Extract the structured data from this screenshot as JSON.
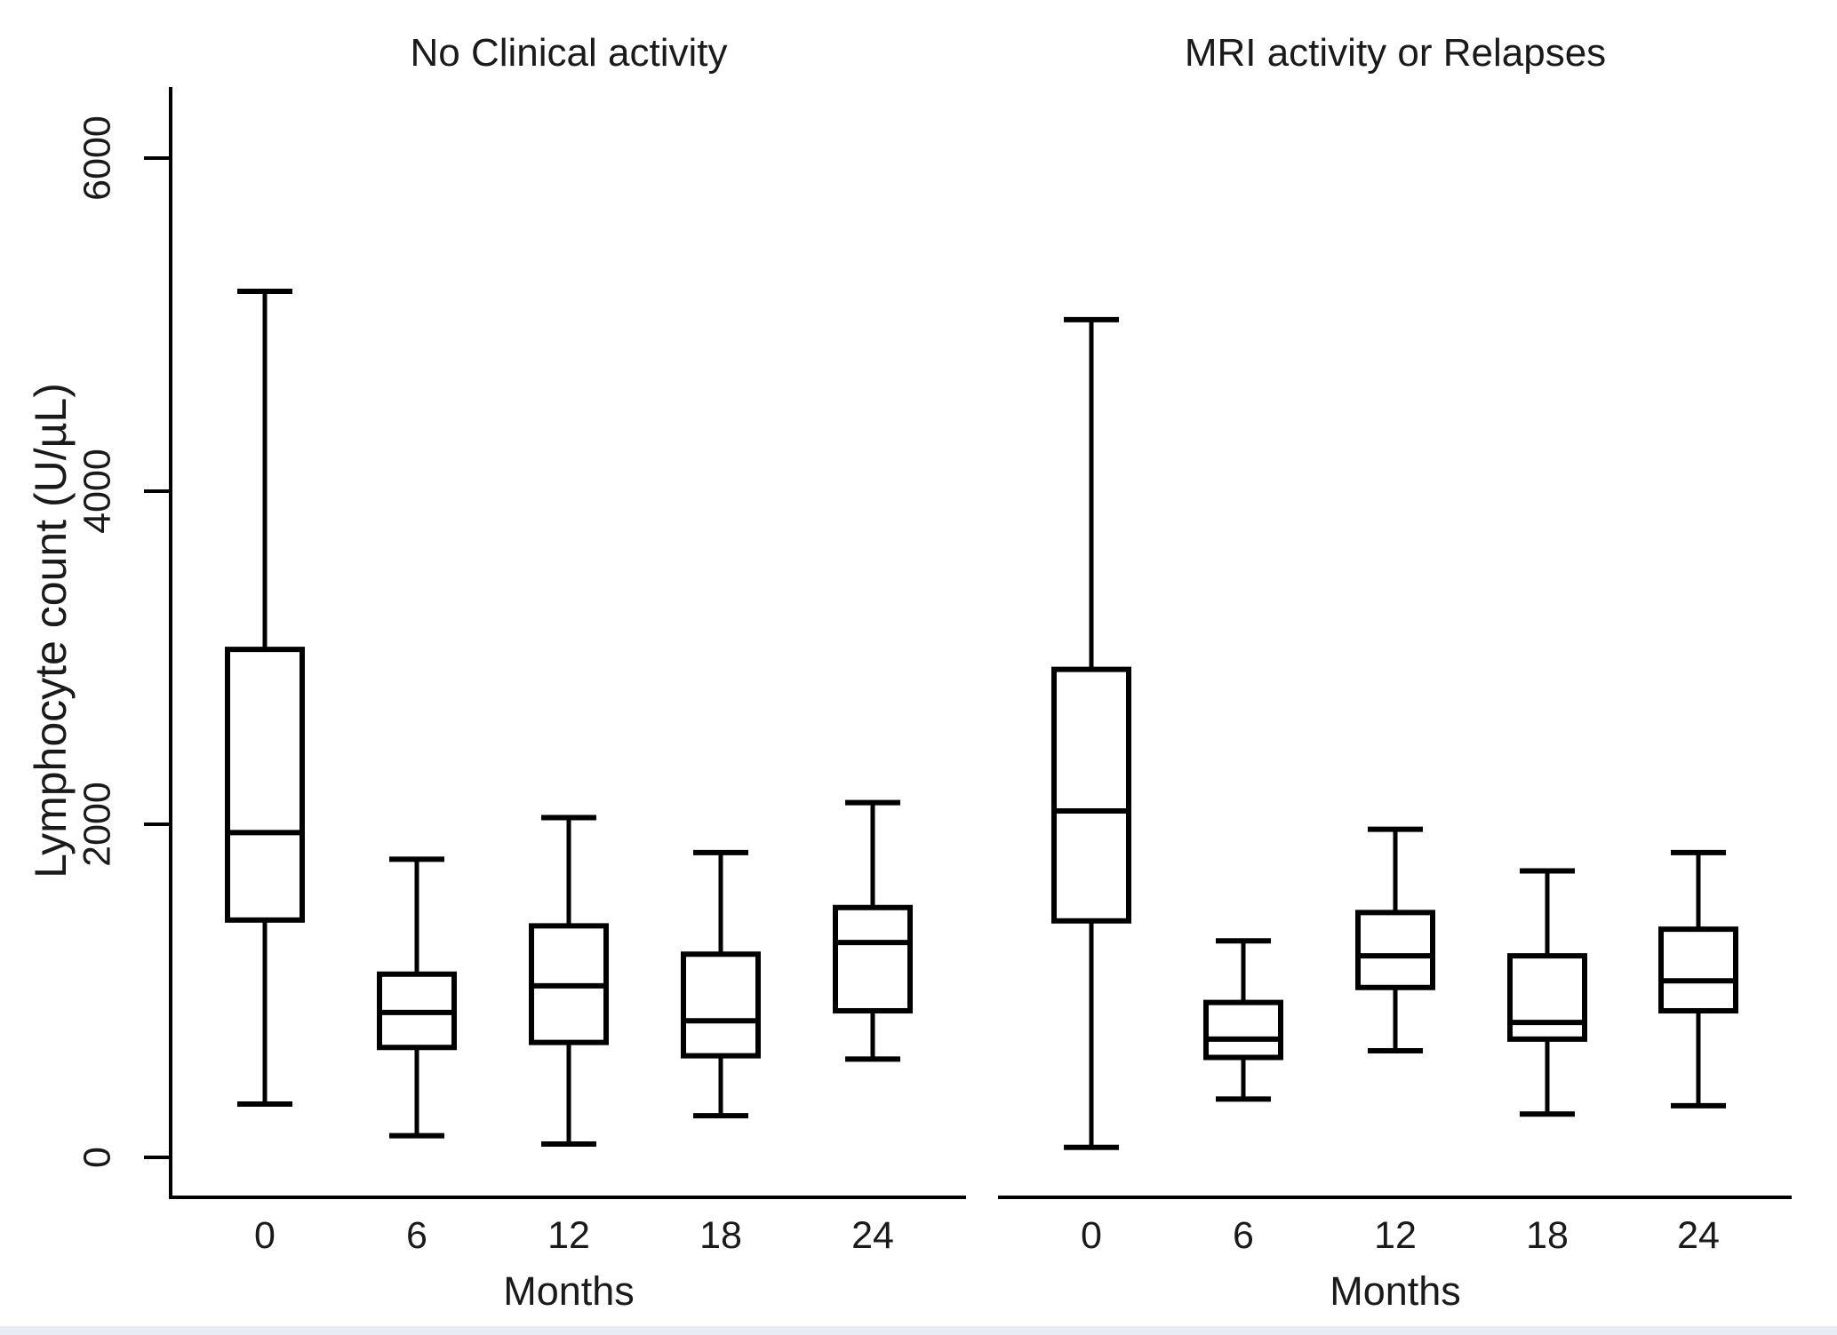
{
  "figure_colors": {
    "stroke": "#000000",
    "box_fill": "#ffffff",
    "bottom_strip": "#e8edf3"
  },
  "chart_data": {
    "type": "boxplot",
    "ylabel": "Lymphocyte count (U/µL)",
    "xlabel": "Months",
    "yticks": [
      0,
      2000,
      4000,
      6000
    ],
    "ylim": [
      0,
      6430
    ],
    "categories": [
      "0",
      "6",
      "12",
      "18",
      "24"
    ],
    "legend_position": "none",
    "grid": false,
    "panels": [
      {
        "title": "No Clinical activity",
        "boxes": [
          {
            "x": "0",
            "min": 320,
            "q1": 1425,
            "median": 1950,
            "q3": 3050,
            "max": 5200
          },
          {
            "x": "6",
            "min": 130,
            "q1": 660,
            "median": 870,
            "q3": 1100,
            "max": 1790
          },
          {
            "x": "12",
            "min": 80,
            "q1": 690,
            "median": 1030,
            "q3": 1390,
            "max": 2040
          },
          {
            "x": "18",
            "min": 250,
            "q1": 610,
            "median": 820,
            "q3": 1220,
            "max": 1830
          },
          {
            "x": "24",
            "min": 590,
            "q1": 880,
            "median": 1290,
            "q3": 1500,
            "max": 2130
          }
        ]
      },
      {
        "title": "MRI activity or Relapses",
        "boxes": [
          {
            "x": "0",
            "min": 60,
            "q1": 1420,
            "median": 2080,
            "q3": 2930,
            "max": 5030
          },
          {
            "x": "6",
            "min": 350,
            "q1": 600,
            "median": 710,
            "q3": 930,
            "max": 1300
          },
          {
            "x": "12",
            "min": 640,
            "q1": 1020,
            "median": 1210,
            "q3": 1470,
            "max": 1970
          },
          {
            "x": "18",
            "min": 260,
            "q1": 710,
            "median": 810,
            "q3": 1210,
            "max": 1720
          },
          {
            "x": "24",
            "min": 310,
            "q1": 880,
            "median": 1060,
            "q3": 1370,
            "max": 1830
          }
        ]
      }
    ]
  }
}
